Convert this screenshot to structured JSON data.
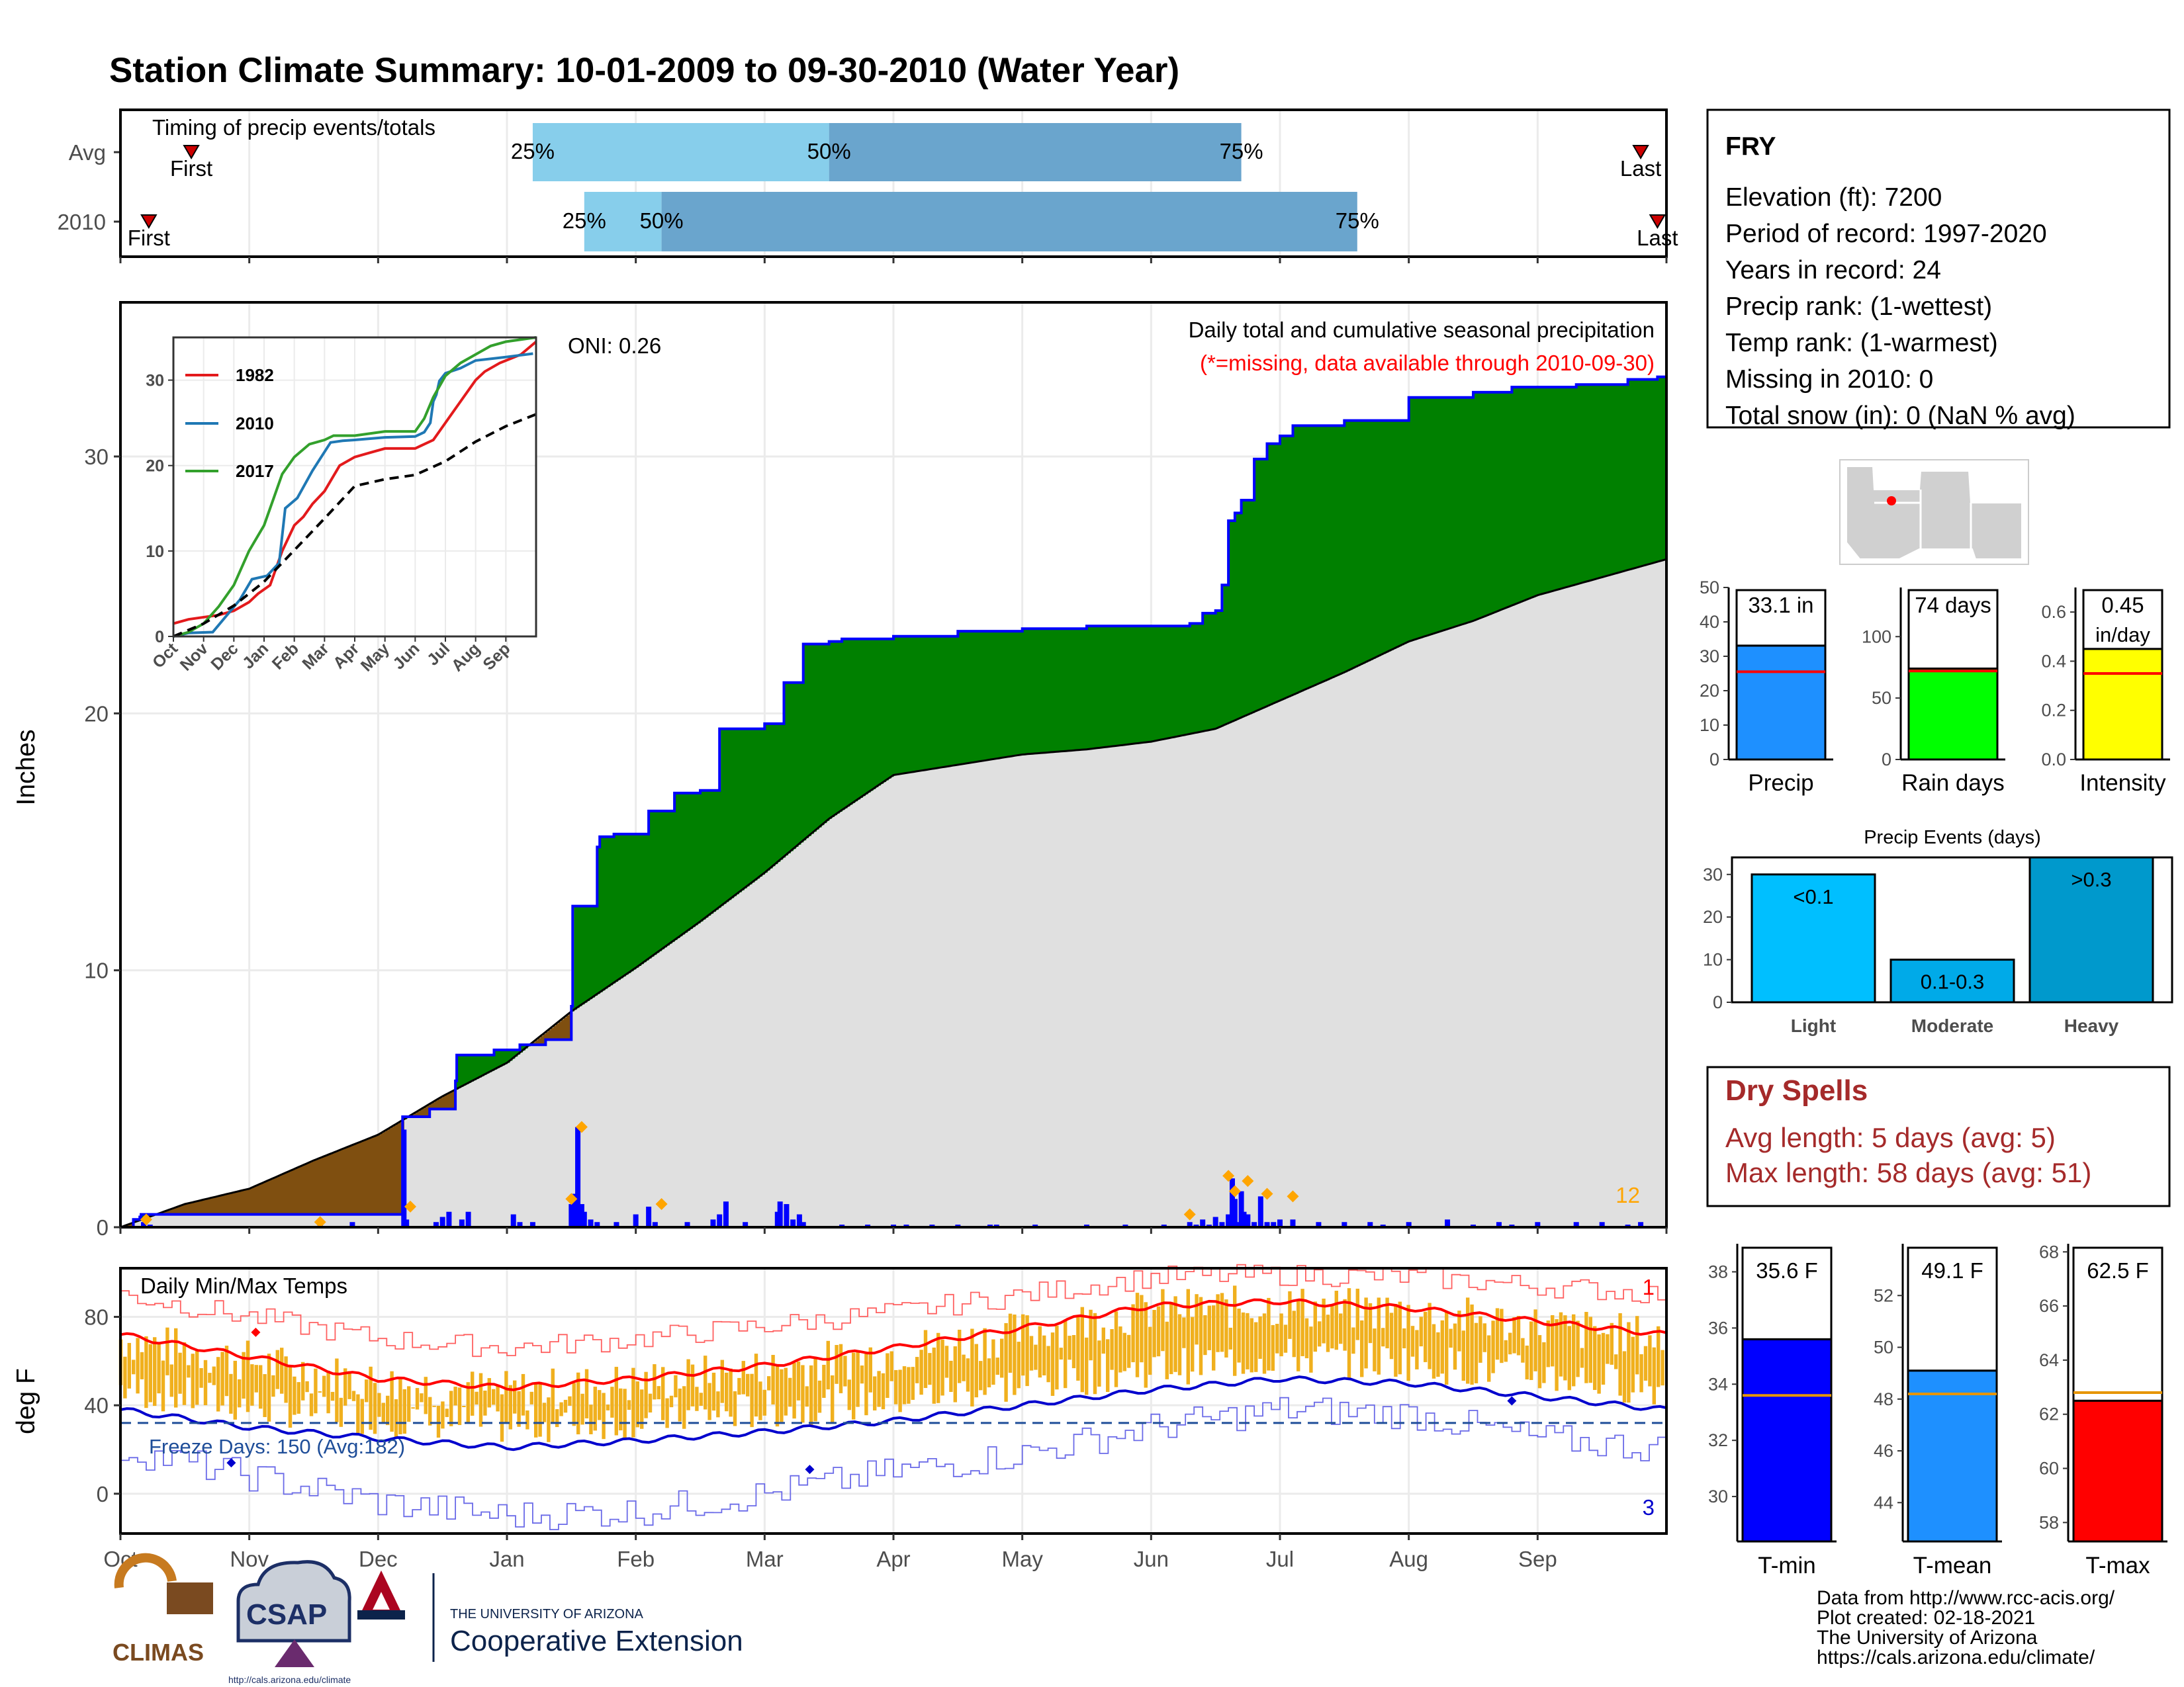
{
  "title": "Station Climate Summary: 10-01-2009 to 09-30-2010 (Water Year)",
  "colors": {
    "title": "#8b2500",
    "cum_obs": "#0000ff",
    "above_fill": "#008000",
    "below_fill": "#7f4f10",
    "avg_fill": "#e0e0e0",
    "bars": "#0000ff",
    "markers": "#ffa500",
    "tmax": "#ff0000",
    "tmin": "#0000cd",
    "range_bar": "#f0b01e",
    "freeze": "#1f4e99",
    "dry_text": "#a52a2a",
    "pct_light": "#87ceeb",
    "pct_dark": "#6aa5cd"
  },
  "timing_panel": {
    "title": "Timing of precip events/totals",
    "rows": [
      {
        "label": "Avg",
        "first_month": 0.55,
        "last_month": 11.8,
        "p25": 3.2,
        "p50": 5.5,
        "p75": 8.7
      },
      {
        "label": "2010",
        "first_month": 0.22,
        "last_month": 11.93,
        "p25": 3.6,
        "p50": 4.2,
        "p75": 9.6
      }
    ],
    "first_label": "First",
    "last_label": "Last",
    "p25_label": "25%",
    "p50_label": "50%",
    "p75_label": "75%"
  },
  "chart_data": [
    {
      "type": "area",
      "id": "cumulative_precip",
      "title": "Daily total and cumulative seasonal precipitation",
      "subtitle": "(*=missing, data available through 2010-09-30)",
      "oni_text": "ONI: 0.26",
      "ylabel": "Inches",
      "ylim": [
        0,
        36
      ],
      "yticks": [
        0,
        10,
        20,
        30
      ],
      "xlim": [
        0,
        12
      ],
      "corner_count": "12",
      "observed_cumulative": {
        "x": [
          0,
          0.1,
          0.15,
          0.16,
          1.3,
          1.6,
          2.18,
          2.19,
          2.4,
          2.6,
          2.61,
          2.9,
          3.1,
          3.11,
          3.3,
          3.5,
          3.51,
          3.7,
          3.72,
          3.8,
          3.83,
          3.9,
          4.1,
          4.3,
          4.5,
          4.65,
          5.0,
          5.15,
          5.3,
          5.5,
          5.6,
          5.7,
          6.0,
          6.5,
          7.0,
          7.5,
          8.0,
          8.3,
          8.4,
          8.5,
          8.55,
          8.6,
          8.65,
          8.7,
          8.8,
          8.9,
          9.0,
          9.1,
          9.5,
          10.0,
          10.5,
          10.8,
          11.0,
          11.3,
          11.5,
          11.7,
          11.8,
          11.93
        ],
        "y": [
          0,
          0.3,
          0.4,
          0.5,
          0.5,
          0.5,
          0.5,
          4.3,
          4.6,
          5.7,
          6.7,
          6.9,
          7.1,
          7.1,
          7.3,
          8.6,
          12.5,
          14.8,
          15.2,
          15.2,
          15.3,
          15.3,
          16.2,
          16.9,
          17.0,
          19.4,
          19.6,
          21.2,
          22.7,
          22.8,
          22.9,
          22.9,
          23.0,
          23.2,
          23.3,
          23.4,
          23.4,
          23.5,
          23.9,
          24.0,
          25.0,
          27.5,
          27.8,
          28.3,
          29.9,
          30.5,
          30.8,
          31.2,
          31.4,
          32.3,
          32.5,
          32.7,
          32.7,
          32.8,
          32.8,
          33.0,
          33.0,
          33.1
        ]
      },
      "average_cumulative": {
        "x": [
          0,
          0.5,
          1.0,
          1.5,
          2.0,
          2.5,
          3.0,
          3.5,
          4.0,
          4.5,
          5.0,
          5.5,
          6.0,
          6.5,
          7.0,
          7.5,
          8.0,
          8.5,
          9.0,
          9.5,
          10.0,
          10.5,
          11.0,
          11.5,
          12.0
        ],
        "y": [
          0,
          0.9,
          1.5,
          2.6,
          3.6,
          5.1,
          6.4,
          8.4,
          10.1,
          11.9,
          13.8,
          15.9,
          17.6,
          18.0,
          18.4,
          18.6,
          18.9,
          19.4,
          20.5,
          21.6,
          22.8,
          23.6,
          24.6,
          25.3,
          26.0
        ]
      },
      "daily_bars": {
        "x": [
          0.18,
          0.23,
          1.55,
          1.8,
          2.2,
          2.22,
          2.45,
          2.5,
          2.55,
          2.65,
          2.7,
          3.05,
          3.1,
          3.2,
          3.5,
          3.52,
          3.55,
          3.58,
          3.6,
          3.65,
          3.7,
          3.85,
          4.0,
          4.1,
          4.15,
          4.4,
          4.6,
          4.65,
          4.7,
          4.85,
          5.1,
          5.12,
          5.17,
          5.22,
          5.27,
          5.3,
          5.6,
          5.8,
          6.0,
          6.1,
          6.3,
          6.5,
          6.75,
          6.8,
          7.1,
          7.5,
          7.8,
          8.1,
          8.3,
          8.35,
          8.4,
          8.45,
          8.5,
          8.55,
          8.6,
          8.63,
          8.65,
          8.68,
          8.7,
          8.72,
          8.75,
          8.8,
          8.85,
          8.9,
          8.95,
          9.0,
          9.1,
          9.3,
          9.5,
          9.7,
          9.8,
          10.0,
          10.3,
          10.5,
          10.7,
          10.8,
          11.0,
          11.3,
          11.5,
          11.7,
          11.8
        ],
        "values": [
          0.2,
          0.1,
          0.2,
          0.2,
          3.8,
          0.3,
          0.2,
          0.4,
          0.6,
          0.3,
          0.6,
          0.5,
          0.2,
          0.2,
          0.9,
          1.3,
          3.9,
          0.9,
          0.6,
          0.3,
          0.2,
          0.2,
          0.5,
          0.8,
          0.2,
          0.2,
          0.3,
          0.5,
          1.0,
          0.2,
          0.6,
          1.0,
          0.9,
          0.3,
          0.5,
          0.2,
          0.1,
          0.1,
          0.1,
          0.1,
          0.1,
          0.1,
          0.1,
          0.1,
          0.1,
          0.1,
          0.1,
          0.1,
          0.2,
          0.1,
          0.3,
          0.1,
          0.4,
          0.2,
          0.5,
          1.9,
          1.1,
          0.2,
          1.4,
          0.6,
          0.5,
          0.2,
          1.2,
          0.2,
          0.2,
          0.3,
          0.3,
          0.2,
          0.2,
          0.2,
          0.1,
          0.2,
          0.3,
          0.1,
          0.2,
          0.1,
          0.2,
          0.2,
          0.2,
          0.1,
          0.2
        ]
      },
      "highlight_markers": {
        "x": [
          0.2,
          1.55,
          2.25,
          3.5,
          3.58,
          4.2,
          8.3,
          8.6,
          8.65,
          8.75,
          8.9,
          9.1
        ],
        "y": [
          0.3,
          0.2,
          0.8,
          1.1,
          3.9,
          0.9,
          0.5,
          2.0,
          1.4,
          1.8,
          1.3,
          1.2
        ]
      },
      "month_ticks": [
        "Oct",
        "Nov",
        "Dec",
        "Jan",
        "Feb",
        "Mar",
        "Apr",
        "May",
        "Jun",
        "Jul",
        "Aug",
        "Sep"
      ]
    },
    {
      "type": "line",
      "id": "inset_comparison",
      "x_ticks": [
        "Oct",
        "Nov",
        "Dec",
        "Jan",
        "Feb",
        "Mar",
        "Apr",
        "May",
        "Jun",
        "Jul",
        "Aug",
        "Sep"
      ],
      "ylim": [
        0,
        35
      ],
      "yticks": [
        0,
        10,
        20,
        30
      ],
      "series": [
        {
          "name": "1982",
          "color": "#e31a1c",
          "x": [
            0,
            0.5,
            1.5,
            2.0,
            2.5,
            2.8,
            3.2,
            3.6,
            4.0,
            4.3,
            4.6,
            5.0,
            5.5,
            6.0,
            6.5,
            7.0,
            8.0,
            8.3,
            8.6,
            9.0,
            9.5,
            10.0,
            10.3,
            10.8,
            11.5,
            12.0
          ],
          "values": [
            1.5,
            2.0,
            2.5,
            3.0,
            4.0,
            5.0,
            6.0,
            10.0,
            13.0,
            14.0,
            15.5,
            17.0,
            20.0,
            21.0,
            21.5,
            22.0,
            22.0,
            22.5,
            23.0,
            25.0,
            27.5,
            30.0,
            31.0,
            32.0,
            33.0,
            34.5
          ]
        },
        {
          "name": "2010",
          "color": "#1f78b4",
          "x": [
            0,
            0.5,
            1.3,
            2.2,
            2.6,
            3.1,
            3.5,
            3.7,
            4.1,
            4.6,
            5.2,
            5.6,
            6.0,
            7.0,
            8.0,
            8.3,
            8.5,
            8.6,
            8.7,
            8.8,
            9.0,
            9.5,
            10.0,
            11.0,
            11.9
          ],
          "values": [
            0,
            0.4,
            0.5,
            4.3,
            6.7,
            7.1,
            8.6,
            15.0,
            16.2,
            19.4,
            22.7,
            22.9,
            23.0,
            23.3,
            23.4,
            23.9,
            25.0,
            27.5,
            28.3,
            29.9,
            30.8,
            31.4,
            32.3,
            32.7,
            33.1
          ]
        },
        {
          "name": "2017",
          "color": "#33a02c",
          "x": [
            0,
            0.5,
            1.0,
            1.5,
            2.0,
            2.5,
            3.0,
            3.3,
            3.6,
            4.0,
            4.5,
            5.0,
            5.3,
            6.0,
            7.0,
            8.0,
            8.3,
            8.6,
            9.0,
            9.5,
            10.0,
            10.5,
            11.0,
            12.0
          ],
          "values": [
            0,
            0.5,
            1.5,
            3.5,
            6.0,
            10.0,
            13.0,
            16.0,
            19.0,
            21.0,
            22.5,
            23.0,
            23.5,
            23.5,
            24.0,
            24.0,
            25.5,
            28.0,
            30.5,
            32.0,
            33.0,
            34.0,
            34.5,
            35.0
          ]
        },
        {
          "name": "average",
          "color": "#000000",
          "dash": true,
          "x": [
            0,
            1,
            2,
            3,
            4,
            5,
            6,
            7,
            8,
            9,
            10,
            11,
            12
          ],
          "values": [
            0,
            1.5,
            3.6,
            6.4,
            10.1,
            13.8,
            17.6,
            18.4,
            18.9,
            20.5,
            22.8,
            24.6,
            26.0
          ]
        }
      ]
    },
    {
      "type": "bar",
      "id": "summary_bars",
      "panels": [
        {
          "label": "Precip",
          "value": 33.1,
          "avg": 25.5,
          "value_text": "33.1 in",
          "ylim": [
            0,
            50
          ],
          "yticks": [
            0,
            10,
            20,
            30,
            40,
            50
          ],
          "color": "#1e90ff"
        },
        {
          "label": "Rain days",
          "value": 74,
          "avg": 72,
          "value_text": "74 days",
          "ylim": [
            0,
            140
          ],
          "yticks": [
            0,
            50,
            100
          ],
          "color": "#00ff00"
        },
        {
          "label": "Intensity",
          "value": 0.45,
          "avg": 0.35,
          "value_text": "0.45",
          "value_text2": "in/day",
          "ylim": [
            0,
            0.7
          ],
          "yticks": [
            0.0,
            0.2,
            0.4,
            0.6
          ],
          "color": "#ffff00"
        }
      ]
    },
    {
      "type": "bar",
      "id": "precip_events",
      "title": "Precip Events (days)",
      "categories": [
        "Light",
        "Moderate",
        "Heavy"
      ],
      "values": [
        30,
        10,
        34
      ],
      "labels": [
        "<0.1",
        "0.1-0.3",
        ">0.3"
      ],
      "ylim": [
        0,
        34
      ],
      "yticks": [
        0,
        10,
        20,
        30
      ],
      "colors": [
        "#00bfff",
        "#00aae8",
        "#0099cc"
      ]
    },
    {
      "type": "bar",
      "id": "daily_temps",
      "title": "Daily Min/Max Temps",
      "ylabel": "deg F",
      "ylim": [
        -18,
        102
      ],
      "yticks": [
        0,
        40,
        80
      ],
      "freeze_line": 32,
      "freeze_text": "Freeze Days: 150 (Avg:182)",
      "count_top": "1",
      "count_bottom": "3",
      "normal_max": {
        "x": [
          0,
          1,
          2,
          3,
          4,
          5,
          6,
          7,
          8,
          9,
          10,
          11,
          12
        ],
        "y": [
          72,
          62,
          52,
          48,
          52,
          58,
          66,
          75,
          85,
          87,
          84,
          78,
          72
        ]
      },
      "normal_min": {
        "x": [
          0,
          1,
          2,
          3,
          4,
          5,
          6,
          7,
          8,
          9,
          10,
          11,
          12
        ],
        "y": [
          38,
          30,
          25,
          21,
          24,
          28,
          33,
          40,
          47,
          52,
          50,
          44,
          38
        ]
      },
      "record_max": {
        "x": [
          0,
          1,
          2,
          3,
          4,
          5,
          6,
          7,
          8,
          9,
          10,
          11,
          12
        ],
        "y": [
          90,
          80,
          70,
          66,
          70,
          76,
          82,
          90,
          98,
          99,
          98,
          94,
          90
        ]
      },
      "record_min": {
        "x": [
          0,
          1,
          2,
          3,
          4,
          5,
          6,
          7,
          8,
          9,
          10,
          11,
          12
        ],
        "y": [
          20,
          8,
          -4,
          -10,
          -8,
          0,
          10,
          18,
          30,
          38,
          36,
          25,
          20
        ]
      }
    },
    {
      "type": "bar",
      "id": "temp_bars",
      "panels": [
        {
          "label": "T-min",
          "value": 35.6,
          "avg": 33.6,
          "value_text": "35.6 F",
          "ylim": [
            28.4,
            39.0
          ],
          "yticks": [
            30,
            32,
            34,
            36,
            38
          ],
          "color": "#0000ff"
        },
        {
          "label": "T-mean",
          "value": 49.1,
          "avg": 48.2,
          "value_text": "49.1 F",
          "ylim": [
            42.5,
            54.0
          ],
          "yticks": [
            44,
            46,
            48,
            50,
            52
          ],
          "color": "#1e90ff"
        },
        {
          "label": "T-max",
          "value": 62.5,
          "avg": 62.8,
          "value_text": "62.5 F",
          "ylim": [
            57.3,
            68.3
          ],
          "yticks": [
            58,
            60,
            62,
            64,
            66,
            68
          ],
          "color": "#ff0000"
        }
      ]
    }
  ],
  "station": {
    "name": "FRY",
    "lines": [
      "Elevation (ft): 7200",
      "Period of record: 1997-2020",
      "Years in record: 24",
      "Precip rank:  (1-wettest)",
      "Temp rank:  (1-warmest)",
      "Missing in 2010: 0",
      "Total snow (in): 0 (NaN % avg)"
    ]
  },
  "dry_spells": {
    "title": "Dry Spells",
    "avg_line": "Avg length: 5 days (avg: 5)",
    "max_line": "Max length: 58 days (avg: 51)"
  },
  "footer": {
    "lines": [
      "Data from http://www.rcc-acis.org/",
      "Plot created: 02-18-2021",
      "The University of Arizona",
      "https://cals.arizona.edu/climate/"
    ]
  },
  "logos": {
    "climas": "CLIMAS",
    "csap": "CSAP",
    "csap_url": "http://cals.arizona.edu/climate",
    "ua_small": "THE UNIVERSITY OF ARIZONA",
    "ua_big": "Cooperative Extension"
  }
}
